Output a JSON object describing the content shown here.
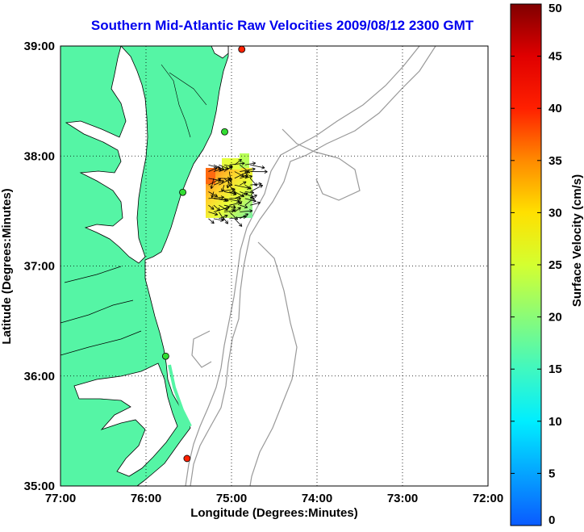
{
  "title": "Southern Mid-Atlantic Raw Velocities 2009/08/12 2300 GMT",
  "map": {
    "xlabel": "Longitude (Degrees:Minutes)",
    "ylabel": "Latitude (Degrees:Minutes)",
    "lon_range": [
      -77,
      -72
    ],
    "lat_range": [
      35,
      39
    ],
    "x_ticks": [
      "77:00",
      "76:00",
      "75:00",
      "74:00",
      "73:00",
      "72:00"
    ],
    "y_ticks": [
      "35:00",
      "36:00",
      "37:00",
      "38:00",
      "39:00"
    ],
    "grid": "dotted",
    "land_color": "#55f5a5",
    "ocean_color": "#ffffff",
    "bathymetry_color": "#999999",
    "stations": [
      {
        "lon": -74.88,
        "lat": 38.97,
        "color": "#ff2200"
      },
      {
        "lon": -75.08,
        "lat": 38.22,
        "color": "#33dd33"
      },
      {
        "lon": -75.57,
        "lat": 37.67,
        "color": "#33dd33"
      },
      {
        "lon": -75.77,
        "lat": 36.18,
        "color": "#33dd33"
      },
      {
        "lon": -75.52,
        "lat": 35.25,
        "color": "#ff2200"
      }
    ],
    "velocity_field": {
      "lon_range": [
        -75.3,
        -74.75
      ],
      "lat_range": [
        37.4,
        37.95
      ],
      "speed_range_cm_s": [
        15,
        32
      ]
    }
  },
  "colorbar": {
    "label": "Surface Velocity (cm/s)",
    "ticks": [
      "0",
      "5",
      "10",
      "15",
      "20",
      "25",
      "30",
      "35",
      "40",
      "45",
      "50"
    ],
    "range": [
      0,
      50
    ],
    "colormap": "jet"
  }
}
